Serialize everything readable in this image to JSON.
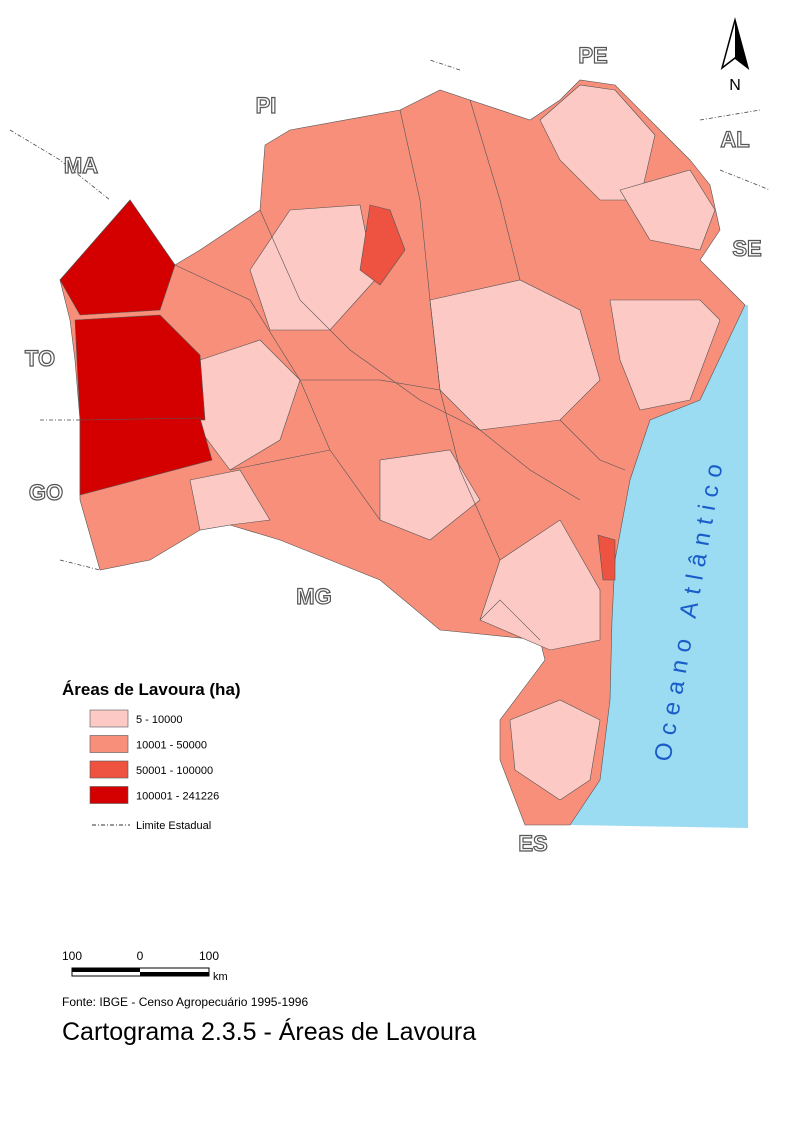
{
  "map": {
    "title": "Cartograma 2.3.5 - Áreas de Lavoura",
    "source": "Fonte: IBGE - Censo Agropecuário 1995-1996",
    "north": "N",
    "ocean": "Oceano Atlântico",
    "neighbors": [
      "PE",
      "PI",
      "AL",
      "MA",
      "SE",
      "TO",
      "GO",
      "MG",
      "ES"
    ],
    "legend": {
      "title": "Áreas de Lavoura (ha)",
      "items": [
        {
          "label": "5 - 10000",
          "color": "#fdc9c5"
        },
        {
          "label": "10001 - 50000",
          "color": "#f78f7b"
        },
        {
          "label": "50001 - 100000",
          "color": "#ee5240"
        },
        {
          "label": "100001 - 241226",
          "color": "#d40000"
        }
      ],
      "boundary": "Limite Estadual"
    },
    "scale_bar": {
      "labels": [
        "100",
        "0",
        "100"
      ],
      "unit": "km"
    },
    "ocean_color": "#9bdcf2"
  }
}
